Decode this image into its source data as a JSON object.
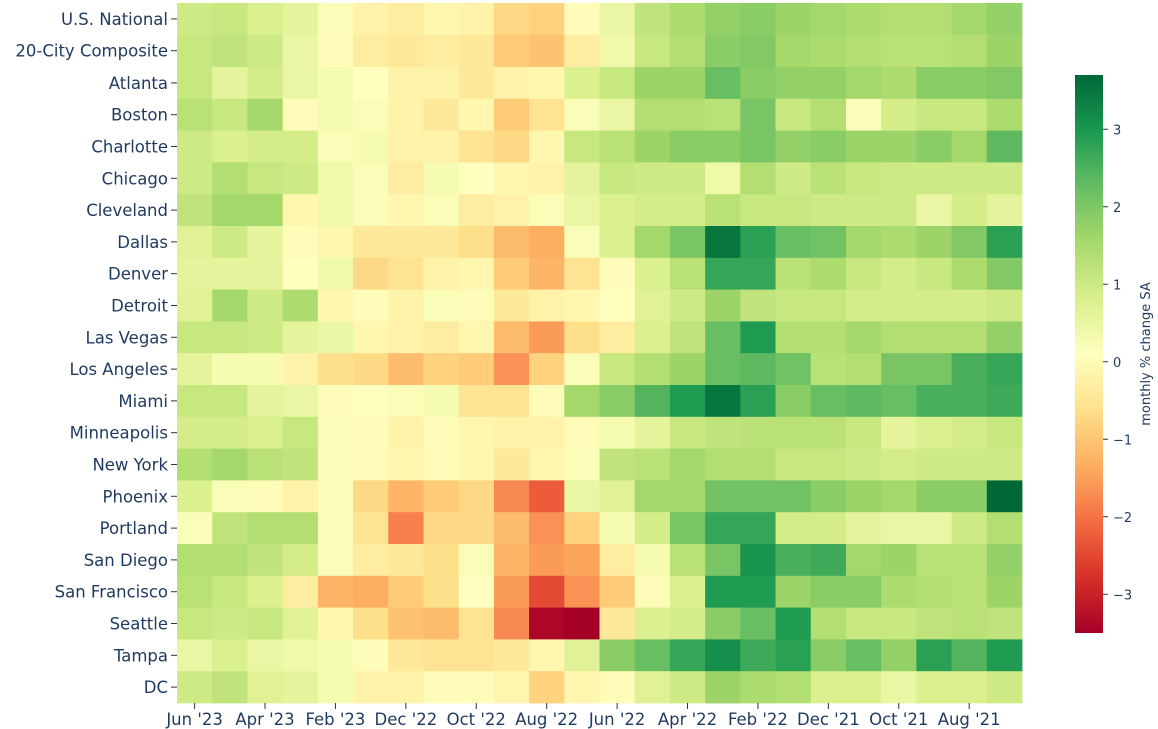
{
  "chart_data": {
    "type": "heatmap",
    "title": "",
    "xlabel": "",
    "ylabel": "",
    "colormap": "RdYlGn",
    "value_range": [
      -3.5,
      3.7
    ],
    "x_tick_labels": [
      "Jun '23",
      "Apr '23",
      "Feb '23",
      "Dec '22",
      "Oct '22",
      "Aug '22",
      "Jun '22",
      "Apr '22",
      "Feb '22",
      "Dec '21",
      "Oct '21",
      "Aug '21"
    ],
    "x": [
      "Jun '23",
      "May '23",
      "Apr '23",
      "Mar '23",
      "Feb '23",
      "Jan '23",
      "Dec '22",
      "Nov '22",
      "Oct '22",
      "Sep '22",
      "Aug '22",
      "Jul '22",
      "Jun '22",
      "May '22",
      "Apr '22",
      "Mar '22",
      "Feb '22",
      "Jan '22",
      "Dec '21",
      "Nov '21",
      "Oct '21",
      "Sep '21",
      "Aug '21",
      "Jul '21"
    ],
    "groups": [
      {
        "rows": [
          {
            "name": "U.S. National",
            "values": [
              0.9,
              1.0,
              0.7,
              0.5,
              0.1,
              -0.3,
              -0.4,
              -0.2,
              -0.3,
              -0.8,
              -0.9,
              -0.1,
              0.4,
              1.1,
              1.4,
              1.7,
              1.8,
              1.6,
              1.5,
              1.4,
              1.3,
              1.3,
              1.5,
              1.7
            ]
          },
          {
            "name": "20-City Composite",
            "values": [
              1.0,
              1.1,
              0.9,
              0.4,
              -0.1,
              -0.4,
              -0.5,
              -0.4,
              -0.5,
              -1.0,
              -1.1,
              -0.4,
              0.3,
              1.0,
              1.3,
              1.8,
              1.9,
              1.5,
              1.4,
              1.3,
              1.2,
              1.2,
              1.3,
              1.6
            ]
          }
        ]
      },
      {
        "rows": [
          {
            "name": "Atlanta",
            "values": [
              1.0,
              0.5,
              0.8,
              0.4,
              0.2,
              0.0,
              -0.3,
              -0.3,
              -0.5,
              -0.3,
              -0.2,
              0.7,
              1.0,
              1.6,
              1.6,
              2.2,
              1.8,
              1.7,
              1.7,
              1.5,
              1.4,
              1.8,
              1.8,
              1.9
            ]
          },
          {
            "name": "Boston",
            "values": [
              1.2,
              1.0,
              1.5,
              -0.1,
              0.2,
              0.1,
              -0.3,
              -0.5,
              -0.2,
              -1.0,
              -0.6,
              0.1,
              0.4,
              1.3,
              1.3,
              1.2,
              2.0,
              1.0,
              1.3,
              0.1,
              0.8,
              1.0,
              1.0,
              1.4
            ]
          },
          {
            "name": "Charlotte",
            "values": [
              0.9,
              0.7,
              0.8,
              0.8,
              0.1,
              0.2,
              -0.3,
              -0.3,
              -0.6,
              -0.8,
              -0.2,
              1.0,
              1.2,
              1.6,
              1.8,
              1.8,
              2.0,
              1.7,
              1.8,
              1.6,
              1.6,
              1.8,
              1.5,
              2.3
            ]
          },
          {
            "name": "Chicago",
            "values": [
              0.9,
              1.3,
              1.0,
              0.9,
              0.3,
              0.1,
              -0.4,
              0.2,
              0.0,
              -0.2,
              -0.3,
              0.5,
              1.0,
              0.9,
              0.9,
              0.3,
              1.3,
              0.9,
              1.2,
              1.0,
              0.9,
              0.9,
              0.9,
              0.9
            ]
          },
          {
            "name": "Cleveland",
            "values": [
              1.1,
              1.5,
              1.5,
              -0.2,
              0.3,
              0.1,
              -0.2,
              0.1,
              -0.4,
              -0.3,
              0.1,
              0.4,
              0.7,
              0.8,
              0.8,
              1.2,
              1.0,
              1.0,
              0.9,
              0.9,
              0.9,
              0.4,
              0.8,
              0.5
            ]
          },
          {
            "name": "Dallas",
            "values": [
              0.6,
              0.9,
              0.5,
              -0.1,
              -0.2,
              -0.5,
              -0.5,
              -0.5,
              -0.7,
              -1.2,
              -1.4,
              0.1,
              0.7,
              1.5,
              2.0,
              3.5,
              2.8,
              2.2,
              2.1,
              1.5,
              1.4,
              1.6,
              1.9,
              2.8
            ]
          },
          {
            "name": "Denver",
            "values": [
              0.5,
              0.5,
              0.5,
              0.0,
              0.3,
              -0.8,
              -0.6,
              -0.3,
              -0.2,
              -1.0,
              -1.3,
              -0.6,
              -0.1,
              0.7,
              1.2,
              2.7,
              2.7,
              1.2,
              1.4,
              1.0,
              0.8,
              1.0,
              1.4,
              1.9
            ]
          },
          {
            "name": "Detroit",
            "values": [
              0.6,
              1.5,
              0.9,
              1.4,
              -0.2,
              -0.1,
              -0.3,
              0.1,
              -0.1,
              -0.5,
              -0.3,
              -0.2,
              0.0,
              0.6,
              0.9,
              1.6,
              1.1,
              1.0,
              1.0,
              0.8,
              0.8,
              0.8,
              0.8,
              0.9
            ]
          },
          {
            "name": "Las Vegas",
            "values": [
              1.0,
              1.0,
              0.9,
              0.5,
              0.4,
              -0.2,
              -0.3,
              -0.4,
              -0.2,
              -1.2,
              -1.6,
              -0.7,
              -0.4,
              0.7,
              1.1,
              2.2,
              2.9,
              1.3,
              1.3,
              1.5,
              1.3,
              1.3,
              1.3,
              1.7
            ]
          },
          {
            "name": "Los Angeles",
            "values": [
              0.5,
              0.2,
              0.2,
              -0.3,
              -0.7,
              -0.8,
              -1.2,
              -0.9,
              -1.0,
              -1.7,
              -0.9,
              0.1,
              1.0,
              1.3,
              1.6,
              2.2,
              2.3,
              2.1,
              1.2,
              1.3,
              2.0,
              2.0,
              2.5,
              2.7
            ]
          },
          {
            "name": "Miami",
            "values": [
              1.0,
              1.0,
              0.5,
              0.4,
              -0.1,
              0.0,
              0.1,
              0.2,
              -0.6,
              -0.6,
              -0.1,
              1.5,
              1.8,
              2.4,
              2.9,
              3.5,
              2.8,
              1.8,
              2.2,
              2.3,
              2.2,
              2.5,
              2.5,
              2.6
            ]
          },
          {
            "name": "Minneapolis",
            "values": [
              0.8,
              0.8,
              0.7,
              1.0,
              0.1,
              -0.1,
              -0.3,
              -0.1,
              -0.2,
              -0.3,
              -0.3,
              -0.1,
              0.2,
              0.5,
              1.0,
              1.1,
              1.2,
              1.2,
              1.2,
              1.0,
              0.5,
              0.7,
              0.8,
              1.0
            ]
          },
          {
            "name": "New York",
            "values": [
              1.3,
              1.5,
              1.2,
              1.1,
              0.1,
              -0.1,
              -0.2,
              -0.1,
              -0.2,
              -0.5,
              -0.2,
              0.1,
              1.1,
              1.2,
              1.5,
              1.3,
              1.3,
              1.0,
              1.0,
              0.9,
              0.8,
              0.9,
              0.9,
              0.9
            ]
          },
          {
            "name": "Phoenix",
            "values": [
              0.7,
              0.1,
              -0.1,
              -0.3,
              0.1,
              -0.8,
              -1.3,
              -1.0,
              -0.8,
              -1.8,
              -2.3,
              0.4,
              0.6,
              1.5,
              1.5,
              2.1,
              2.1,
              2.1,
              1.8,
              1.6,
              1.5,
              1.8,
              1.8,
              3.7
            ]
          },
          {
            "name": "Portland",
            "values": [
              0.1,
              1.1,
              1.3,
              1.3,
              0.1,
              -0.6,
              -1.9,
              -0.8,
              -0.8,
              -1.2,
              -1.7,
              -0.9,
              0.2,
              0.8,
              2.0,
              2.7,
              2.7,
              0.8,
              0.8,
              0.5,
              0.4,
              0.4,
              0.9,
              1.3
            ]
          },
          {
            "name": "San Diego",
            "values": [
              1.3,
              1.3,
              1.1,
              0.8,
              0.1,
              -0.4,
              -0.5,
              -0.7,
              0.1,
              -1.3,
              -1.6,
              -1.5,
              -0.4,
              0.2,
              1.2,
              2.0,
              3.0,
              2.5,
              2.6,
              1.5,
              1.6,
              1.2,
              1.2,
              1.7
            ]
          },
          {
            "name": "San Francisco",
            "values": [
              1.2,
              1.0,
              0.7,
              -0.4,
              -1.3,
              -1.4,
              -1.0,
              -0.7,
              0.0,
              -1.6,
              -2.5,
              -1.7,
              -1.0,
              -0.1,
              0.7,
              2.9,
              2.9,
              1.6,
              1.8,
              1.8,
              1.4,
              1.3,
              1.2,
              1.6
            ]
          },
          {
            "name": "Seattle",
            "values": [
              1.0,
              0.9,
              1.0,
              0.6,
              -0.2,
              -0.7,
              -1.1,
              -1.2,
              -0.6,
              -1.8,
              -3.4,
              -3.5,
              -0.5,
              0.7,
              0.8,
              1.8,
              2.2,
              2.9,
              1.3,
              1.0,
              1.0,
              1.1,
              1.2,
              1.1
            ]
          },
          {
            "name": "Tampa",
            "values": [
              0.4,
              0.7,
              0.4,
              0.3,
              0.2,
              -0.1,
              -0.5,
              -0.6,
              -0.6,
              -0.5,
              -0.2,
              0.6,
              1.8,
              2.2,
              2.7,
              3.1,
              2.6,
              2.8,
              1.8,
              2.2,
              1.7,
              2.8,
              2.4,
              2.9
            ]
          },
          {
            "name": "DC",
            "values": [
              0.9,
              1.1,
              0.6,
              0.5,
              0.2,
              -0.3,
              -0.3,
              -0.1,
              -0.1,
              -0.2,
              -0.9,
              -0.2,
              -0.1,
              0.6,
              0.9,
              1.6,
              1.4,
              1.3,
              0.7,
              0.7,
              0.4,
              0.7,
              0.7,
              0.9
            ]
          }
        ]
      }
    ],
    "colorbar": {
      "label": "monthly % change SA",
      "ticks": [
        3,
        2,
        1,
        0,
        -1,
        -2,
        -3
      ],
      "tick_labels": [
        "3",
        "2",
        "1",
        "0",
        "−1",
        "−2",
        "−3"
      ]
    }
  }
}
